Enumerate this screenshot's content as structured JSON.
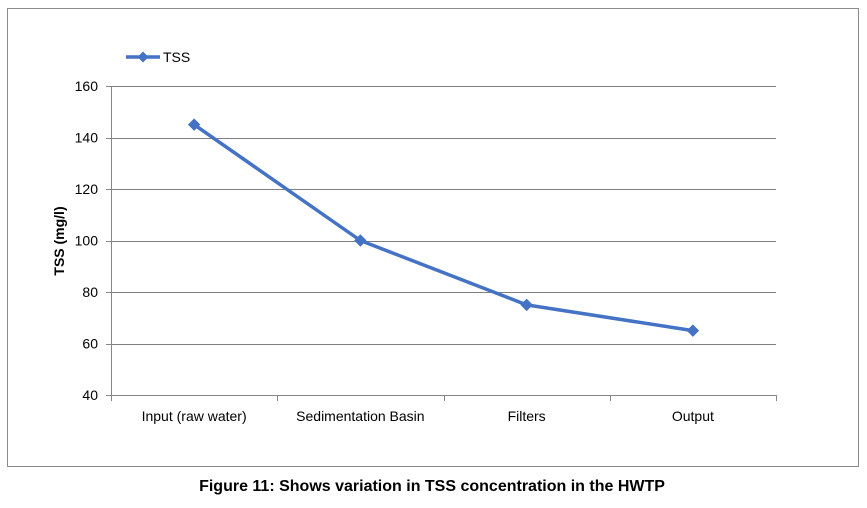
{
  "chart_data": {
    "type": "line",
    "title": "",
    "xlabel": "",
    "ylabel": "TSS (mg/l)",
    "categories": [
      "Input (raw water)",
      "Sedimentation Basin",
      "Filters",
      "Output"
    ],
    "series": [
      {
        "name": "TSS",
        "values": [
          145,
          100,
          75,
          65
        ],
        "color": "#4472c4",
        "marker": "diamond"
      }
    ],
    "ylim": [
      40,
      160
    ],
    "yticks": [
      40,
      60,
      80,
      100,
      120,
      140,
      160
    ],
    "grid": true,
    "legend_position": "top-left"
  },
  "figure": {
    "caption": "Figure 11: Shows variation in TSS concentration in the HWTP"
  },
  "colors": {
    "frame_border": "#8c8c8c",
    "gridline": "#7f7f7f",
    "axis_line": "#868686"
  }
}
